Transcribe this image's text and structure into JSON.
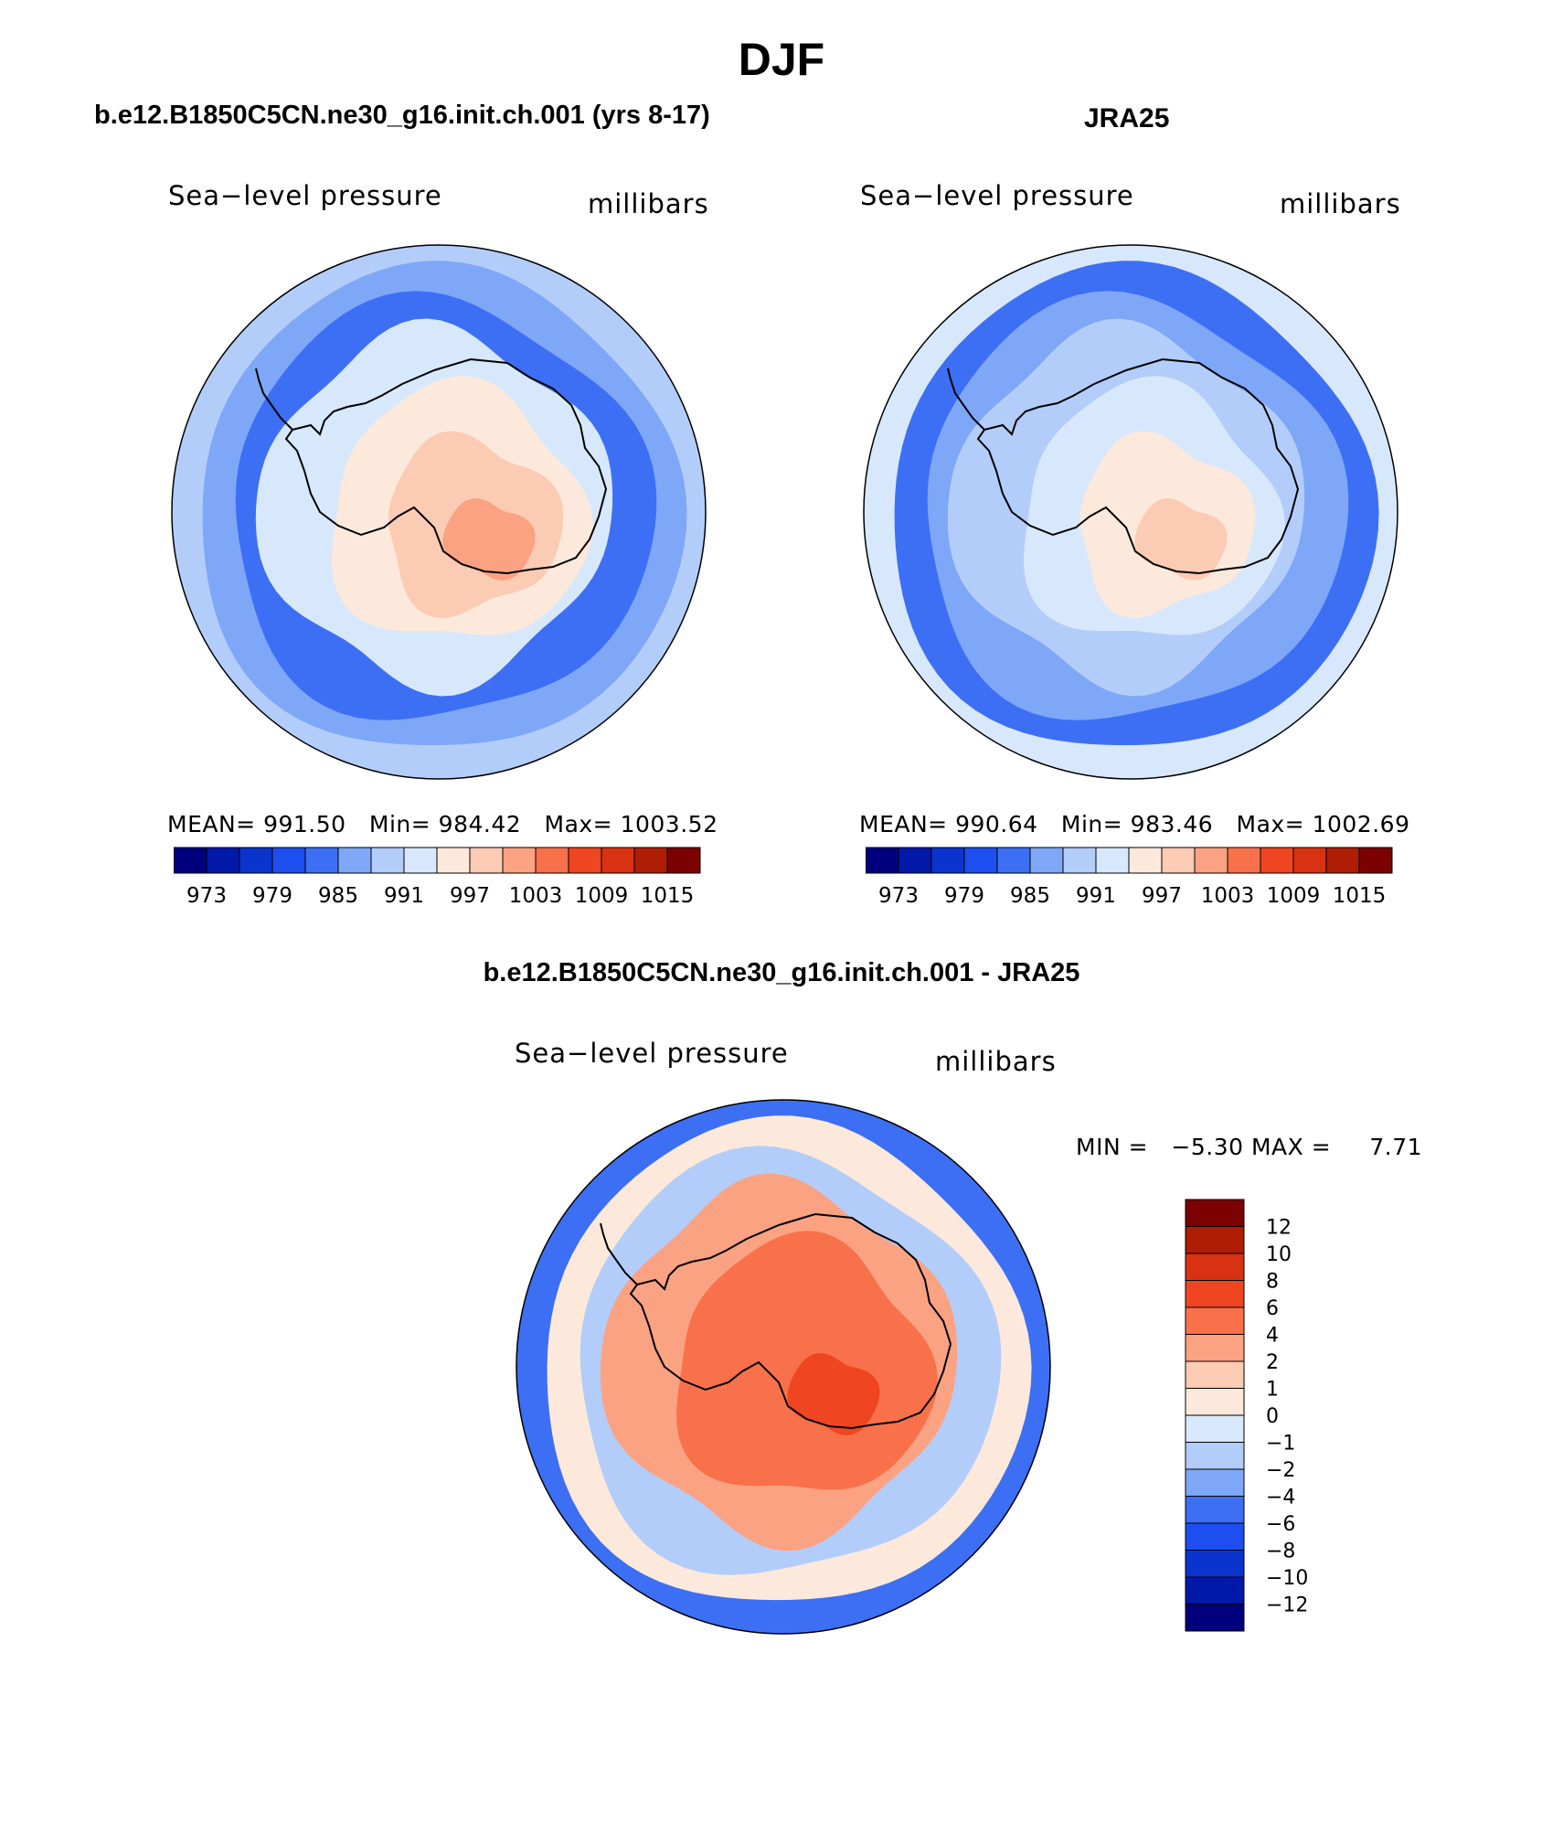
{
  "page_title": "DJF",
  "colors": {
    "levels": [
      "#00007f",
      "#0019a8",
      "#0b34cf",
      "#1d4ff0",
      "#3d6ff5",
      "#7fa7f8",
      "#b3cdfb",
      "#d8e8fc",
      "#fde9db",
      "#fccbb3",
      "#fba282",
      "#f9714a",
      "#ef4621",
      "#d83212",
      "#ae1d04",
      "#7c0202"
    ],
    "coast": "#000000",
    "rim": "#000000"
  },
  "panels": {
    "model": {
      "header": "b.e12.B1850C5CN.ne30_g16.init.ch.001 (yrs 8-17)",
      "variable": "Sea−level pressure",
      "units": "millibars",
      "mean_label": "MEAN=",
      "mean": "991.50",
      "min_label": "Min=",
      "min": "984.42",
      "max_label": "Max=",
      "max": "1003.52"
    },
    "obs": {
      "header": "JRA25",
      "variable": "Sea−level pressure",
      "units": "millibars",
      "mean_label": "MEAN=",
      "mean": "990.64",
      "min_label": "Min=",
      "min": "983.46",
      "max_label": "Max=",
      "max": "1002.69"
    },
    "diff": {
      "header": "b.e12.B1850C5CN.ne30_g16.init.ch.001 - JRA25",
      "variable": "Sea−level pressure",
      "units": "millibars",
      "min_label": "MIN =",
      "min": "−5.30",
      "max_label": "MAX =",
      "max": "7.71"
    }
  },
  "colorbar_abs": {
    "ticks": [
      "973",
      "979",
      "985",
      "991",
      "997",
      "1003",
      "1009",
      "1015"
    ]
  },
  "colorbar_diff": {
    "ticks": [
      "12",
      "10",
      "8",
      "6",
      "4",
      "2",
      "1",
      "0",
      "−1",
      "−2",
      "−4",
      "−6",
      "−8",
      "−10",
      "−12"
    ]
  },
  "map_fields": {
    "model": {
      "ocean_near": 5,
      "ocean_mid": 4,
      "ocean_far": 6,
      "coast_band": 7,
      "land_outer": 8,
      "land_inner": 9,
      "land_core": 10
    },
    "obs": {
      "ocean_near": 4,
      "ocean_mid": 5,
      "ocean_far": 7,
      "coast_band": 6,
      "land_outer": 7,
      "land_inner": 8,
      "land_core": 9
    },
    "diff": {
      "ocean_near": 8,
      "ocean_mid": 6,
      "ocean_far": 4,
      "coast_band": 10,
      "land_outer": 11,
      "land_inner": 11,
      "land_core": 12
    }
  }
}
